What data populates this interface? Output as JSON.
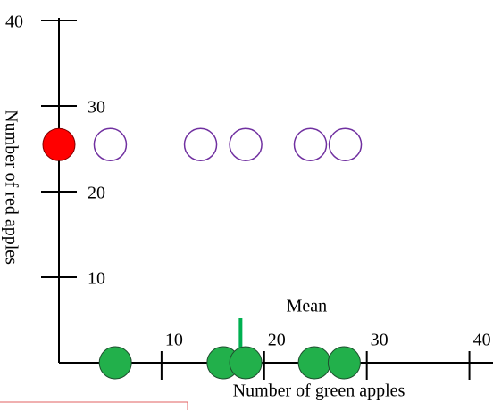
{
  "chart_data": {
    "type": "scatter",
    "x_label": "Number of green apples",
    "y_label": "Number of red apples",
    "xlim": [
      0,
      42.3
    ],
    "ylim": [
      0,
      40
    ],
    "xticks": [
      10,
      20,
      30,
      40
    ],
    "yticks": [
      10,
      20,
      30,
      40
    ],
    "series": [
      {
        "color": "#22b04b",
        "stroke": "#1f4e2f",
        "filled": true,
        "x": [
          5.5,
          16,
          18.2,
          24.9,
          27.8
        ],
        "y": [
          0,
          0,
          0,
          0,
          0
        ]
      },
      {
        "color": "#7030a0",
        "filled": false,
        "x": [
          5.0,
          13.8,
          18.2,
          24.5,
          27.9
        ],
        "y": [
          25.5,
          25.5,
          25.5,
          25.5,
          25.5
        ]
      },
      {
        "color": "#ff0000",
        "stroke": "#7f0000",
        "filled": true,
        "x": [
          0
        ],
        "y": [
          25.5
        ]
      }
    ],
    "annotations": [
      {
        "text": "Mean",
        "x": 17.7,
        "color": "#00b050"
      }
    ]
  }
}
